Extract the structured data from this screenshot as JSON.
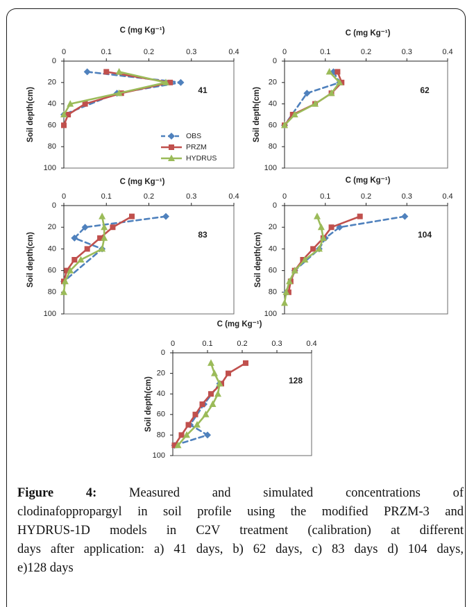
{
  "caption": {
    "label": "Figure 4:",
    "lines": [
      "Measured and simulated concentrations of",
      "clodinafoppropargyl in soil profile using the modified PRZM-3 and",
      "HYDRUS-1D models in C2V treatment (calibration) at different",
      "days after application: a) 41 days, b) 62 days, c) 83 days d) 104 days,",
      "e)128 days"
    ]
  },
  "colors": {
    "obs": "#4F81BD",
    "przm": "#C0504D",
    "hydrus": "#9BBB59",
    "frame": "#1a1a1a"
  },
  "chart_data": [
    {
      "type": "line",
      "panel_label": "41",
      "xlabel": "C (mg Kg⁻¹)",
      "ylabel": "Soil depth(cm)",
      "x_axis_position": "top",
      "y_axis_direction": "inverted",
      "xlim": [
        0,
        0.4
      ],
      "ylim": [
        0,
        100
      ],
      "xticks": [
        "0",
        "0.1",
        "0.2",
        "0.3",
        "0.4"
      ],
      "yticks": [
        "0",
        "20",
        "40",
        "60",
        "80",
        "100"
      ],
      "grid": false,
      "legend": {
        "show": true,
        "placement": "bottom-right",
        "entries": [
          "OBS",
          "PRZM",
          "HYDRUS"
        ]
      },
      "series": [
        {
          "name": "OBS",
          "color": "#4F81BD",
          "marker": "diamond",
          "line": "dashed",
          "x": [
            0.055,
            0.275,
            0.125,
            0.0
          ],
          "y": [
            10,
            20,
            30,
            50
          ]
        },
        {
          "name": "PRZM",
          "color": "#C0504D",
          "marker": "square",
          "line": "solid",
          "x": [
            0.1,
            0.25,
            0.135,
            0.05,
            0.01,
            0.0
          ],
          "y": [
            10,
            20,
            30,
            40,
            50,
            60
          ]
        },
        {
          "name": "HYDRUS",
          "color": "#9BBB59",
          "marker": "triangle",
          "line": "solid",
          "x": [
            0.13,
            0.24,
            0.13,
            0.015,
            0.0
          ],
          "y": [
            10,
            20,
            30,
            40,
            50
          ]
        }
      ]
    },
    {
      "type": "line",
      "panel_label": "62",
      "xlabel": "C (mg Kg⁻¹)",
      "ylabel": "Soil depth(cm)",
      "x_axis_position": "top",
      "y_axis_direction": "inverted",
      "xlim": [
        0,
        0.4
      ],
      "ylim": [
        0,
        100
      ],
      "xticks": [
        "0",
        "0.1",
        "0.2",
        "0.3",
        "0.4"
      ],
      "yticks": [
        "0",
        "20",
        "40",
        "60",
        "80",
        "100"
      ],
      "grid": false,
      "series": [
        {
          "name": "OBS",
          "color": "#4F81BD",
          "marker": "diamond",
          "line": "dashed",
          "x": [
            0.12,
            0.135,
            0.055,
            0.0
          ],
          "y": [
            10,
            20,
            30,
            60
          ]
        },
        {
          "name": "PRZM",
          "color": "#C0504D",
          "marker": "square",
          "line": "solid",
          "x": [
            0.13,
            0.14,
            0.115,
            0.075,
            0.02,
            0.0
          ],
          "y": [
            10,
            20,
            30,
            40,
            50,
            60
          ]
        },
        {
          "name": "HYDRUS",
          "color": "#9BBB59",
          "marker": "triangle",
          "line": "solid",
          "x": [
            0.11,
            0.135,
            0.115,
            0.075,
            0.025,
            0.0
          ],
          "y": [
            10,
            20,
            30,
            40,
            50,
            60
          ]
        }
      ]
    },
    {
      "type": "line",
      "panel_label": "83",
      "xlabel": "C (mg Kg⁻¹)",
      "ylabel": "Soil depth(cm)",
      "x_axis_position": "top",
      "y_axis_direction": "inverted",
      "xlim": [
        0,
        0.4
      ],
      "ylim": [
        0,
        100
      ],
      "xticks": [
        "0",
        "0.1",
        "0.2",
        "0.3",
        "0.4"
      ],
      "yticks": [
        "0",
        "20",
        "40",
        "60",
        "80",
        "100"
      ],
      "grid": false,
      "series": [
        {
          "name": "OBS",
          "color": "#4F81BD",
          "marker": "diamond",
          "line": "dashed",
          "x": [
            0.24,
            0.05,
            0.025,
            0.09,
            0.0
          ],
          "y": [
            10,
            20,
            30,
            40,
            70
          ]
        },
        {
          "name": "PRZM",
          "color": "#C0504D",
          "marker": "square",
          "line": "solid",
          "x": [
            0.16,
            0.115,
            0.085,
            0.055,
            0.025,
            0.007,
            0.0
          ],
          "y": [
            10,
            20,
            30,
            40,
            50,
            60,
            70
          ]
        },
        {
          "name": "HYDRUS",
          "color": "#9BBB59",
          "marker": "triangle",
          "line": "solid",
          "x": [
            0.09,
            0.095,
            0.095,
            0.09,
            0.04,
            0.015,
            0.003,
            0.0
          ],
          "y": [
            10,
            20,
            30,
            40,
            50,
            60,
            70,
            80
          ]
        }
      ]
    },
    {
      "type": "line",
      "panel_label": "104",
      "xlabel": "C (mg Kg⁻¹)",
      "ylabel": "Soil depth(cm)",
      "x_axis_position": "top",
      "y_axis_direction": "inverted",
      "xlim": [
        0,
        0.4
      ],
      "ylim": [
        0,
        100
      ],
      "xticks": [
        "0",
        "0.1",
        "0.2",
        "0.3",
        "0.4"
      ],
      "yticks": [
        "0",
        "20",
        "40",
        "60",
        "80",
        "100"
      ],
      "grid": false,
      "series": [
        {
          "name": "OBS",
          "color": "#4F81BD",
          "marker": "diamond",
          "line": "dashed",
          "x": [
            0.295,
            0.135,
            0.1,
            0.085,
            0.025,
            0.005
          ],
          "y": [
            10,
            20,
            30,
            40,
            60,
            80
          ]
        },
        {
          "name": "PRZM",
          "color": "#C0504D",
          "marker": "square",
          "line": "solid",
          "x": [
            0.185,
            0.115,
            0.095,
            0.07,
            0.045,
            0.025,
            0.015,
            0.01
          ],
          "y": [
            10,
            20,
            30,
            40,
            50,
            60,
            70,
            80
          ]
        },
        {
          "name": "HYDRUS",
          "color": "#9BBB59",
          "marker": "triangle",
          "line": "solid",
          "x": [
            0.08,
            0.09,
            0.095,
            0.085,
            0.05,
            0.025,
            0.012,
            0.004,
            0.0
          ],
          "y": [
            10,
            20,
            30,
            40,
            50,
            60,
            70,
            80,
            90
          ]
        }
      ]
    },
    {
      "type": "line",
      "panel_label": "128",
      "xlabel": "C (mg Kg⁻¹)",
      "ylabel": "Soil depth(cm)",
      "x_axis_position": "top",
      "y_axis_direction": "inverted",
      "xlim": [
        0,
        0.4
      ],
      "ylim": [
        0,
        100
      ],
      "xticks": [
        "0",
        "0.1",
        "0.2",
        "0.3",
        "0.4"
      ],
      "yticks": [
        "0",
        "20",
        "40",
        "60",
        "80",
        "100"
      ],
      "grid": false,
      "series": [
        {
          "name": "OBS",
          "color": "#4F81BD",
          "marker": "diamond",
          "line": "dashed",
          "x": [
            0.135,
            0.09,
            0.05,
            0.1,
            0.005
          ],
          "y": [
            30,
            50,
            70,
            80,
            90
          ]
        },
        {
          "name": "PRZM",
          "color": "#C0504D",
          "marker": "square",
          "line": "solid",
          "x": [
            0.21,
            0.16,
            0.14,
            0.11,
            0.085,
            0.065,
            0.045,
            0.025,
            0.005
          ],
          "y": [
            10,
            20,
            30,
            40,
            50,
            60,
            70,
            80,
            90
          ]
        },
        {
          "name": "HYDRUS",
          "color": "#9BBB59",
          "marker": "triangle",
          "line": "solid",
          "x": [
            0.11,
            0.12,
            0.135,
            0.13,
            0.115,
            0.095,
            0.07,
            0.04,
            0.015
          ],
          "y": [
            10,
            20,
            30,
            40,
            50,
            60,
            70,
            80,
            90
          ]
        }
      ]
    }
  ]
}
